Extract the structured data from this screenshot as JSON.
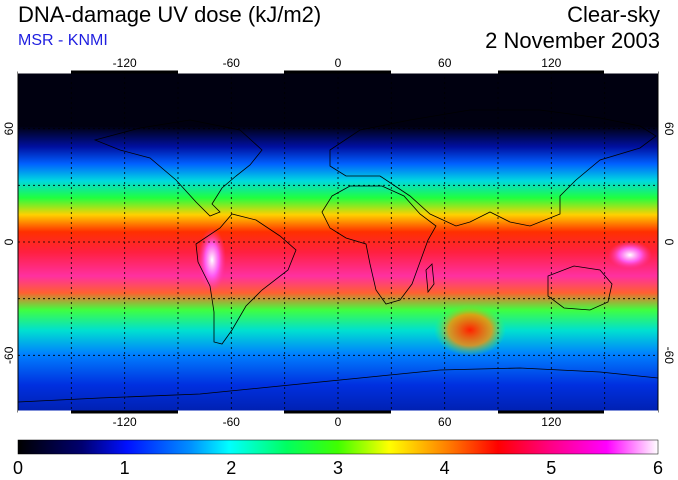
{
  "header": {
    "title": "DNA-damage UV dose (kJ/m2)",
    "subtitle": "MSR - KNMI",
    "sky": "Clear-sky",
    "date": "2 November 2003"
  },
  "map": {
    "lon_ticks": [
      "-120",
      "-60",
      "0",
      "60",
      "120"
    ],
    "lat_ticks": [
      "60",
      "0",
      "-60"
    ],
    "lon_range": [
      -180,
      180
    ],
    "lat_range": [
      -90,
      90
    ]
  },
  "colorbar": {
    "labels": [
      "0",
      "1",
      "2",
      "3",
      "4",
      "5",
      "6"
    ],
    "range": [
      0,
      6
    ]
  },
  "colors": {
    "subtitle": "#1f1fe0"
  }
}
